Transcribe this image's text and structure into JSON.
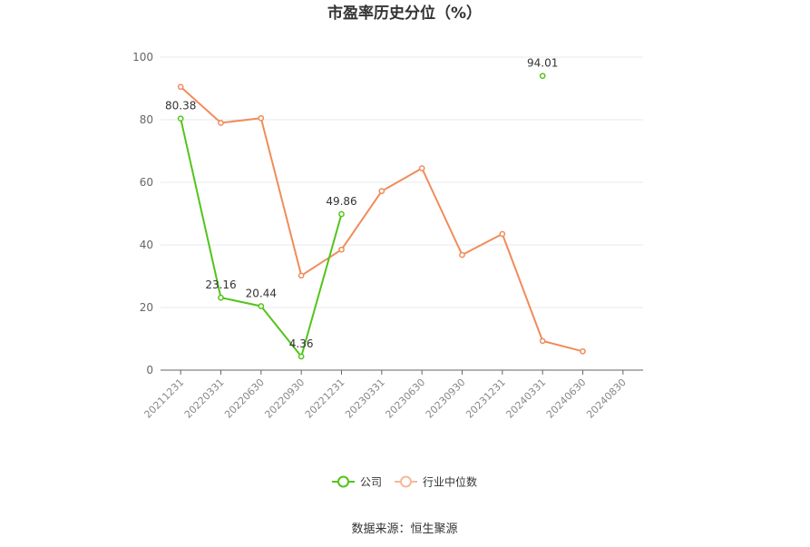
{
  "chart_data": {
    "type": "line",
    "title": "市盈率历史分位（%）",
    "categories": [
      "20211231",
      "20220331",
      "20220630",
      "20220930",
      "20221231",
      "20230331",
      "20230630",
      "20230930",
      "20231231",
      "20240331",
      "20240630",
      "20240830"
    ],
    "ylim": [
      0,
      100
    ],
    "yticks": [
      0,
      20,
      40,
      60,
      80,
      100
    ],
    "grid": true,
    "legend_position": "bottom",
    "series": [
      {
        "name": "公司",
        "color": "#52c41a",
        "values": [
          80.38,
          23.16,
          20.44,
          4.36,
          49.86,
          null,
          null,
          null,
          null,
          94.01,
          null,
          null
        ],
        "labels": [
          "80.38",
          "23.16",
          "20.44",
          "4.36",
          "49.86",
          "",
          "",
          "",
          "",
          "94.01",
          "",
          ""
        ]
      },
      {
        "name": "行业中位数",
        "color": "#f08c5a",
        "values": [
          90.5,
          79.0,
          80.5,
          30.2,
          38.5,
          57.2,
          64.5,
          36.8,
          43.5,
          9.3,
          6.0,
          null
        ]
      }
    ]
  },
  "source": "数据来源：恒生聚源"
}
